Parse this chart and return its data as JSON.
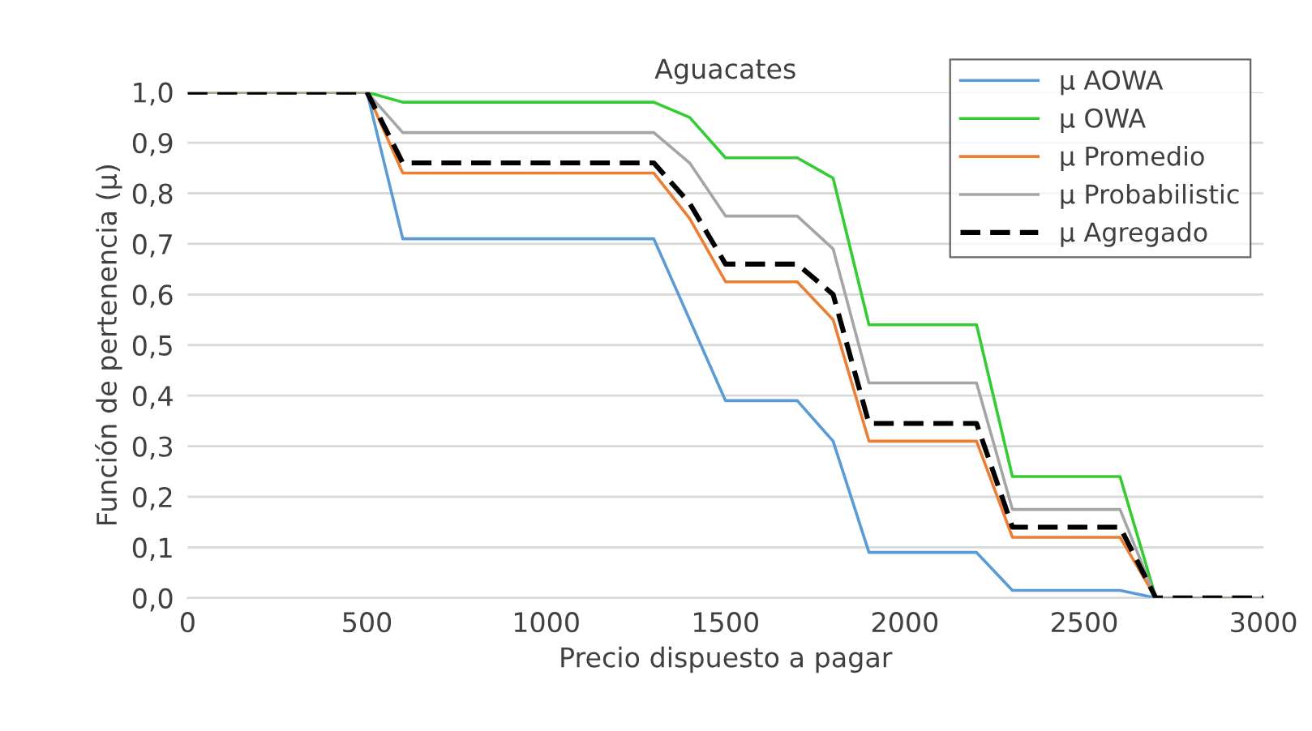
{
  "chart_data": {
    "type": "line",
    "title": "Aguacates",
    "xlabel": "Precio dispuesto a pagar",
    "ylabel": "Función de pertenencia (μ)",
    "x": [
      0,
      500,
      600,
      1300,
      1400,
      1500,
      1700,
      1800,
      1900,
      2200,
      2300,
      2600,
      2700,
      3000
    ],
    "series": [
      {
        "name": "μ AOWA",
        "color": "#5b9bd5",
        "values": [
          1,
          1,
          0.71,
          0.71,
          0.55,
          0.39,
          0.39,
          0.31,
          0.09,
          0.09,
          0.015,
          0.015,
          0,
          0
        ]
      },
      {
        "name": "μ OWA",
        "color": "#33cc33",
        "values": [
          1,
          1,
          0.98,
          0.98,
          0.95,
          0.87,
          0.87,
          0.83,
          0.54,
          0.54,
          0.24,
          0.24,
          0,
          0
        ]
      },
      {
        "name": "μ Promedio",
        "color": "#ed7d31",
        "values": [
          1,
          1,
          0.84,
          0.84,
          0.75,
          0.625,
          0.625,
          0.55,
          0.31,
          0.31,
          0.12,
          0.12,
          0,
          0
        ]
      },
      {
        "name": "μ Probabilistic",
        "color": "#a5a5a5",
        "values": [
          1,
          1,
          0.92,
          0.92,
          0.86,
          0.755,
          0.755,
          0.69,
          0.425,
          0.425,
          0.175,
          0.175,
          0,
          0
        ]
      },
      {
        "name": "μ Agregado",
        "color": "#000000",
        "line_style": "dashed",
        "values": [
          1,
          1,
          0.86,
          0.86,
          0.78,
          0.66,
          0.66,
          0.6,
          0.345,
          0.345,
          0.14,
          0.14,
          0,
          0
        ]
      }
    ],
    "xlim": [
      0,
      3000
    ],
    "xticks": [
      0,
      500,
      1000,
      1500,
      2000,
      2500,
      3000
    ],
    "ylim": [
      0,
      1
    ],
    "yticks": [
      {
        "value": 0,
        "label": "0,0"
      },
      {
        "value": 0.1,
        "label": "0,1"
      },
      {
        "value": 0.2,
        "label": "0,2"
      },
      {
        "value": 0.3,
        "label": "0,3"
      },
      {
        "value": 0.4,
        "label": "0,4"
      },
      {
        "value": 0.5,
        "label": "0,5"
      },
      {
        "value": 0.6,
        "label": "0,6"
      },
      {
        "value": 0.7,
        "label": "0,7"
      },
      {
        "value": 0.8,
        "label": "0,8"
      },
      {
        "value": 0.9,
        "label": "0,9"
      },
      {
        "value": 1,
        "label": "1,0"
      }
    ],
    "grid": "y",
    "legend": "top right",
    "line_style": "solid",
    "marker": "none"
  }
}
